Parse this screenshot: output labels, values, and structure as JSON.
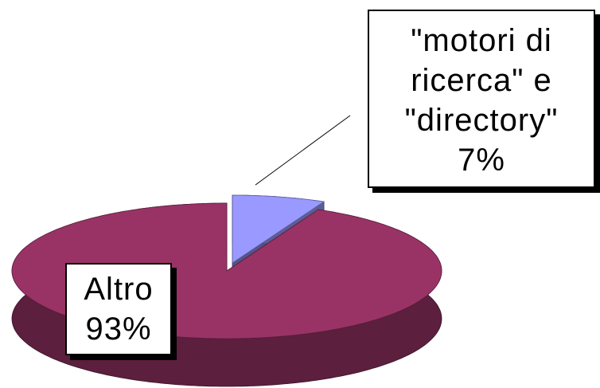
{
  "chart_data": {
    "type": "pie",
    "categories": [
      "\"motori di ricerca\" e \"directory\"",
      "Altro"
    ],
    "values": [
      7,
      93
    ],
    "value_labels": [
      "7%",
      "93%"
    ],
    "colors": [
      "#9999ff",
      "#993366"
    ],
    "exploded": [
      true,
      false
    ]
  }
}
